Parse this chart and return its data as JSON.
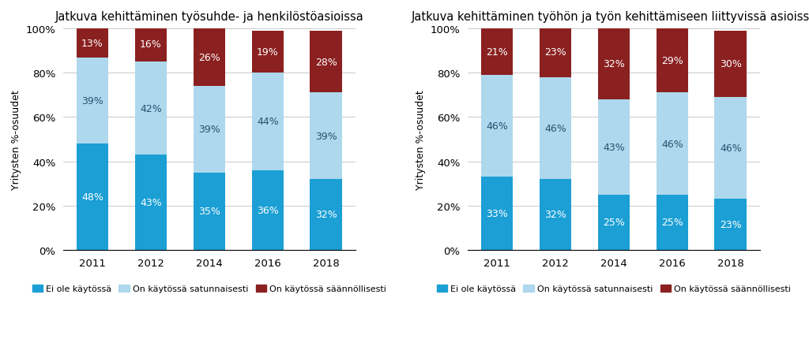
{
  "chart1": {
    "title": "Jatkuva kehittäminen työsuhde- ja henkilöstöasioissa",
    "years": [
      "2011",
      "2012",
      "2014",
      "2016",
      "2018"
    ],
    "ei_ole": [
      48,
      43,
      35,
      36,
      32
    ],
    "satunnaisesti": [
      39,
      42,
      39,
      44,
      39
    ],
    "saannollisesti": [
      13,
      16,
      26,
      19,
      28
    ]
  },
  "chart2": {
    "title": "Jatkuva kehittäminen työhön ja työn kehittämiseen liittyvissä asioissa",
    "years": [
      "2011",
      "2012",
      "2014",
      "2016",
      "2018"
    ],
    "ei_ole": [
      33,
      32,
      25,
      25,
      23
    ],
    "satunnaisesti": [
      46,
      46,
      43,
      46,
      46
    ],
    "saannollisesti": [
      21,
      23,
      32,
      29,
      30
    ]
  },
  "colors": {
    "ei_ole": "#1B9FD4",
    "satunnaisesti": "#AED8ED",
    "saannollisesti": "#8B2020"
  },
  "legend_labels": [
    "Ei ole käytössä",
    "On käytössä satunnaisesti",
    "On käytössä säännöllisesti"
  ],
  "ylabel": "Yritysten %-osuudet",
  "bar_width": 0.55,
  "ylim": [
    0,
    100
  ],
  "yticks": [
    0,
    20,
    40,
    60,
    80,
    100
  ],
  "ytick_labels": [
    "0%",
    "20%",
    "40%",
    "60%",
    "80%",
    "100%"
  ],
  "label_fontsize": 9,
  "title_fontsize": 10.5,
  "tick_fontsize": 9.5
}
